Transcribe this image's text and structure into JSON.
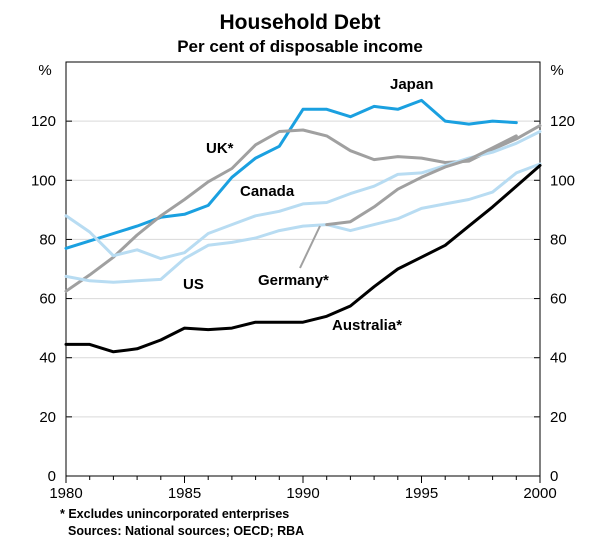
{
  "chart_data": {
    "type": "line",
    "title": "Household Debt",
    "subtitle": "Per cent of disposable income",
    "y_unit_left": "%",
    "y_unit_right": "%",
    "xlim": [
      1980,
      2000
    ],
    "ylim": [
      0,
      140
    ],
    "x_ticks": [
      1980,
      1985,
      1990,
      1995,
      2000
    ],
    "y_ticks": [
      0,
      20,
      40,
      60,
      80,
      100,
      120
    ],
    "grid": true,
    "series": [
      {
        "name": "Japan",
        "label": "Japan",
        "color": "#1aa0e0",
        "x": [
          1980,
          1981,
          1982,
          1983,
          1984,
          1985,
          1986,
          1987,
          1988,
          1989,
          1990,
          1991,
          1992,
          1993,
          1994,
          1995,
          1996,
          1997,
          1998,
          1999
        ],
        "values": [
          77,
          79.5,
          82,
          84.5,
          87.5,
          88.5,
          91.5,
          101,
          107.5,
          111.5,
          124,
          124,
          121.5,
          125,
          124,
          127,
          120,
          119,
          120,
          119.5
        ]
      },
      {
        "name": "UK*",
        "label": "UK*",
        "color": "#a0a0a0",
        "x": [
          1980,
          1981,
          1982,
          1983,
          1984,
          1985,
          1986,
          1987,
          1988,
          1989,
          1990,
          1991,
          1992,
          1993,
          1994,
          1995,
          1996,
          1997,
          1998,
          1999,
          2000
        ],
        "values": [
          62.5,
          68,
          74,
          81.5,
          88,
          93.5,
          99.5,
          104,
          112,
          116.5,
          117,
          115,
          110,
          107,
          108,
          107.5,
          106,
          106.5,
          110.5,
          114,
          118.5
        ]
      },
      {
        "name": "Canada",
        "label": "Canada",
        "color": "#b8dcf2",
        "x": [
          1980,
          1981,
          1982,
          1983,
          1984,
          1985,
          1986,
          1987,
          1988,
          1989,
          1990,
          1991,
          1992,
          1993,
          1994,
          1995,
          1996,
          1997,
          1998,
          1999,
          2000
        ],
        "values": [
          88,
          82.5,
          74.5,
          76.5,
          73.5,
          75.5,
          82,
          85,
          88,
          89.5,
          92,
          92.5,
          95.5,
          98,
          102,
          102.5,
          105,
          107.5,
          109.5,
          112.5,
          116.5
        ]
      },
      {
        "name": "US",
        "label": "US",
        "color": "#b8dcf2",
        "x": [
          1980,
          1981,
          1982,
          1983,
          1984,
          1985,
          1986,
          1987,
          1988,
          1989,
          1990,
          1991,
          1992,
          1993,
          1994,
          1995,
          1996,
          1997,
          1998,
          1999,
          2000
        ],
        "values": [
          67.5,
          66,
          65.5,
          66,
          66.5,
          73.5,
          78,
          79,
          80.5,
          83,
          84.5,
          85,
          83,
          85,
          87,
          90.5,
          92,
          93.5,
          96,
          102.5,
          105.5
        ]
      },
      {
        "name": "Germany*",
        "label": "Germany*",
        "color": "#a0a0a0",
        "x": [
          1991,
          1992,
          1993,
          1994,
          1995,
          1996,
          1997,
          1998,
          1999
        ],
        "values": [
          85,
          86,
          91,
          97,
          101,
          104.5,
          107,
          111,
          115
        ]
      },
      {
        "name": "Australia*",
        "label": "Australia*",
        "color": "#000000",
        "x": [
          1980,
          1981,
          1982,
          1983,
          1984,
          1985,
          1986,
          1987,
          1988,
          1989,
          1990,
          1991,
          1992,
          1993,
          1994,
          1995,
          1996,
          1997,
          1998,
          1999,
          2000
        ],
        "values": [
          44.5,
          44.5,
          42,
          43,
          46,
          50,
          49.5,
          50,
          52,
          52,
          52,
          54,
          57.5,
          64,
          70,
          74,
          78,
          84.5,
          91,
          98,
          105
        ]
      }
    ],
    "annotations": [
      "* Excludes unincorporated enterprises",
      "Sources: National sources; OECD; RBA"
    ]
  }
}
